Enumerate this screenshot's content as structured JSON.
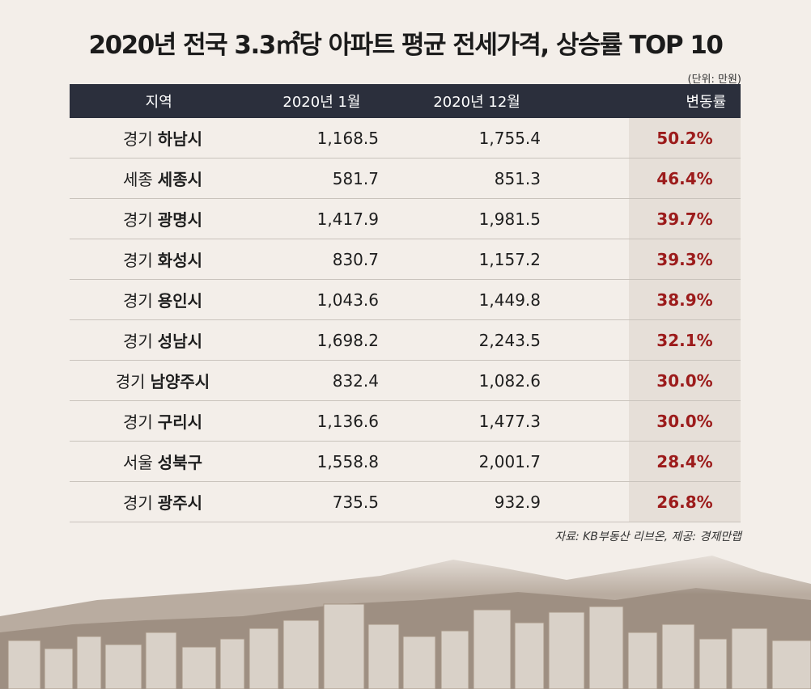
{
  "title": "2020년 전국 3.3㎡당 아파트 평균 전세가격, 상승률 TOP 10",
  "unit": "(단위: 만원)",
  "source": "자료: KB부동산 리브온, 제공: 경제만랩",
  "colors": {
    "header_bg": "#2b2f3c",
    "pct_text": "#9c1b1b",
    "pct_bg": "#e6dfd8"
  },
  "chart_data": {
    "type": "table",
    "columns": [
      "지역",
      "2020년 1월",
      "2020년 12월",
      "변동률"
    ],
    "rows": [
      {
        "region": "경기",
        "city": "하남시",
        "jan": "1,168.5",
        "dec": "1,755.4",
        "change": "50.2%"
      },
      {
        "region": "세종",
        "city": "세종시",
        "jan": "581.7",
        "dec": "851.3",
        "change": "46.4%"
      },
      {
        "region": "경기",
        "city": "광명시",
        "jan": "1,417.9",
        "dec": "1,981.5",
        "change": "39.7%"
      },
      {
        "region": "경기",
        "city": "화성시",
        "jan": "830.7",
        "dec": "1,157.2",
        "change": "39.3%"
      },
      {
        "region": "경기",
        "city": "용인시",
        "jan": "1,043.6",
        "dec": "1,449.8",
        "change": "38.9%"
      },
      {
        "region": "경기",
        "city": "성남시",
        "jan": "1,698.2",
        "dec": "2,243.5",
        "change": "32.1%"
      },
      {
        "region": "경기",
        "city": "남양주시",
        "jan": "832.4",
        "dec": "1,082.6",
        "change": "30.0%"
      },
      {
        "region": "경기",
        "city": "구리시",
        "jan": "1,136.6",
        "dec": "1,477.3",
        "change": "30.0%"
      },
      {
        "region": "서울",
        "city": "성북구",
        "jan": "1,558.8",
        "dec": "2,001.7",
        "change": "28.4%"
      },
      {
        "region": "경기",
        "city": "광주시",
        "jan": "735.5",
        "dec": "932.9",
        "change": "26.8%"
      }
    ]
  }
}
